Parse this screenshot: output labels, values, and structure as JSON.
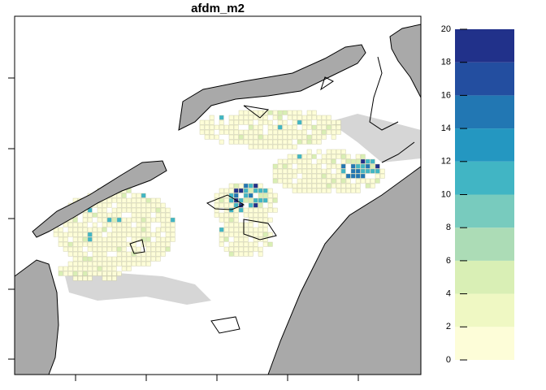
{
  "title": "afdm_m2",
  "legend": {
    "ticks": [
      0,
      2,
      4,
      6,
      8,
      10,
      12,
      14,
      16,
      18,
      20
    ],
    "colors": [
      "#fdfdd8",
      "#eff8c3",
      "#d9efb5",
      "#acdcb6",
      "#78cbbe",
      "#41b5c4",
      "#2497c1",
      "#2277b3",
      "#234ea0",
      "#21318a"
    ]
  }
}
